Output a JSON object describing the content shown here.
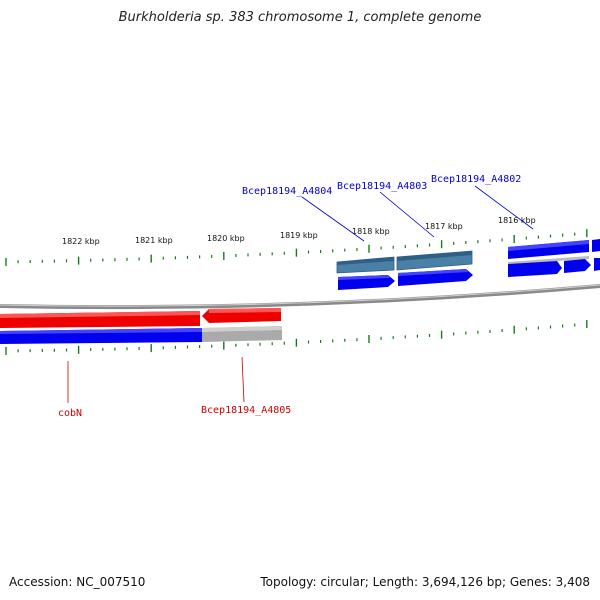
{
  "title": "Burkholderia sp. 383 chromosome 1, complete genome",
  "footer": {
    "accession": "Accession: NC_007510",
    "topology": "Topology: circular; Length: 3,694,126 bp; Genes: 3,408"
  },
  "scale_labels": [
    "1822 kbp",
    "1821 kbp",
    "1820 kbp",
    "1819 kbp",
    "1818 kbp",
    "1817 kbp",
    "1816 kbp"
  ],
  "gene_labels": {
    "a4804": "Bcep18194_A4804",
    "a4803": "Bcep18194_A4803",
    "a4802": "Bcep18194_A4802",
    "cobn": "cobN",
    "a4805": "Bcep18194_A4805"
  },
  "colors": {
    "forward_gene": "#0000ee",
    "reverse_gene": "#ee0000",
    "highlight_gene": "#4a7fa6",
    "noncoding": "#aaaaaa",
    "backbone": "#888888",
    "tick": "#1a7a1a",
    "label_blue": "#0000cc",
    "label_red": "#cc0000"
  }
}
